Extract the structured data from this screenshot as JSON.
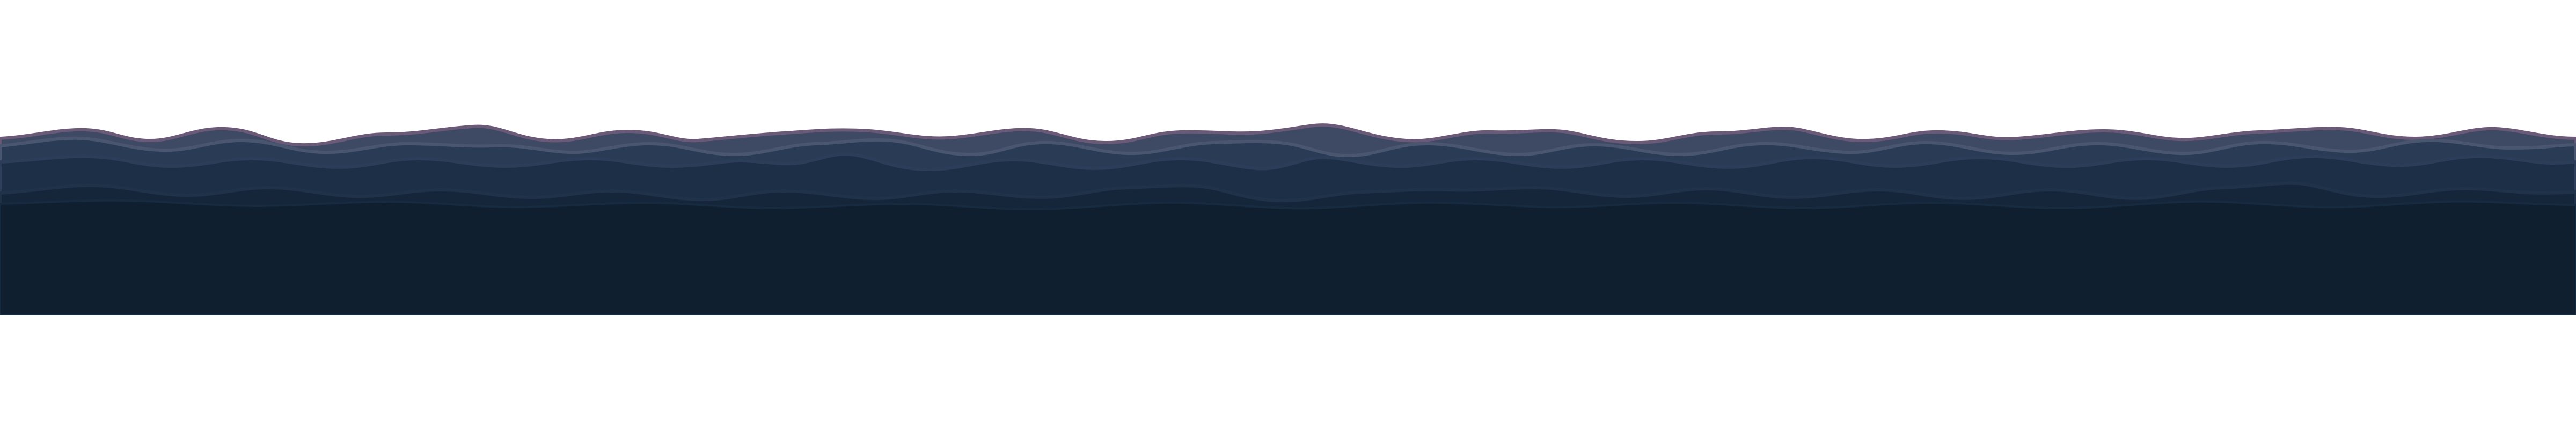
{
  "scene": {
    "background_color": "#ffffff",
    "layers": [
      {
        "name": "back-ridge-layer",
        "fill": "#3e4a63",
        "stroke": "#6a5a78"
      },
      {
        "name": "upper-ridge-layer",
        "fill": "#2a3b55",
        "stroke": "#4a5670"
      },
      {
        "name": "middle-ridge-layer",
        "fill": "#1c2f47",
        "stroke": "#2b3d58"
      },
      {
        "name": "lower-ridge-layer",
        "fill": "#15263b",
        "stroke": "#1f3249"
      },
      {
        "name": "foreground-base-layer",
        "fill": "#0f1f30",
        "stroke": "#162a40"
      }
    ]
  }
}
